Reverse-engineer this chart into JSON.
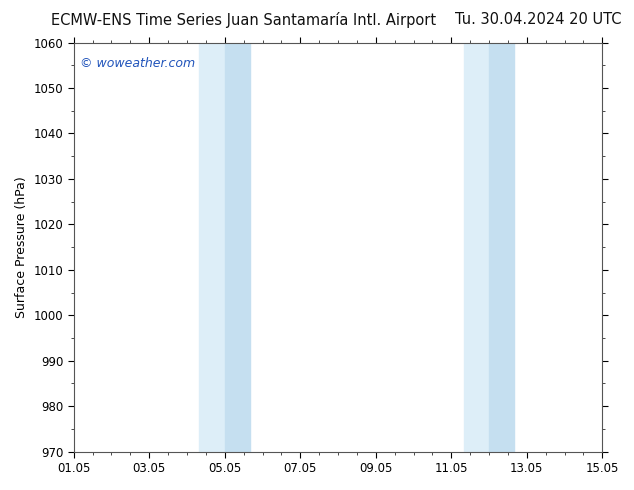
{
  "title_left": "ECMW-ENS Time Series Juan Santamaría Intl. Airport",
  "title_right": "Tu. 30.04.2024 20 UTC",
  "ylabel": "Surface Pressure (hPa)",
  "ylim": [
    970,
    1060
  ],
  "ytick_step": 10,
  "xlim_start": 0,
  "xlim_end": 14,
  "xtick_positions": [
    0,
    2,
    4,
    6,
    8,
    10,
    12,
    14
  ],
  "xtick_labels": [
    "01.05",
    "03.05",
    "05.05",
    "07.05",
    "09.05",
    "11.05",
    "13.05",
    "15.05"
  ],
  "shaded_bands": [
    {
      "xmin": 3.33,
      "xmax": 4.0,
      "dark_xmin": 4.0,
      "dark_xmax": 4.67
    },
    {
      "xmin": 10.33,
      "xmax": 11.0,
      "dark_xmin": 11.0,
      "dark_xmax": 11.67
    }
  ],
  "band_color_light": "#ddeef8",
  "band_color_dark": "#c5dff0",
  "background_color": "#ffffff",
  "plot_bg_color": "#ffffff",
  "watermark_text": "© woweather.com",
  "watermark_color": "#2255bb",
  "title_fontsize": 10.5,
  "axis_label_fontsize": 9,
  "tick_fontsize": 8.5,
  "watermark_fontsize": 9,
  "tick_color": "#000000",
  "spine_color": "#555555"
}
